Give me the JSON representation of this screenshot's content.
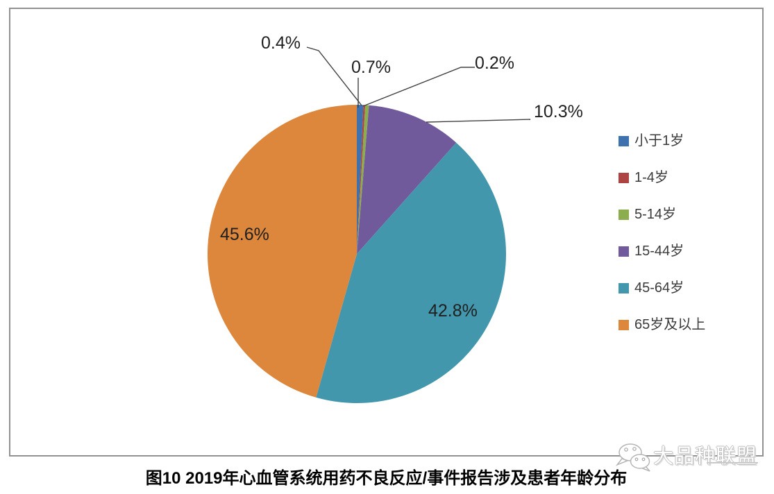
{
  "page": {
    "caption": "图10 2019年心血管系统用药不良反应/事件报告涉及患者年龄分布",
    "watermark": {
      "text": "大品种联盟",
      "logo_icon": "wechat-icon"
    }
  },
  "chart_data": {
    "type": "pie",
    "title": "图10 2019年心血管系统用药不良反应/事件报告涉及患者年龄分布",
    "legend_position": "right",
    "start_angle_deg": -90,
    "direction": "clockwise",
    "units": "%",
    "series": [
      {
        "name": "小于1岁",
        "value": 0.7,
        "label": "0.7%",
        "color": "#3D72AE"
      },
      {
        "name": "1-4岁",
        "value": 0.2,
        "label": "0.2%",
        "color": "#AE4442"
      },
      {
        "name": "5-14岁",
        "value": 0.4,
        "label": "0.4%",
        "color": "#8CAD4E"
      },
      {
        "name": "15-44岁",
        "value": 10.3,
        "label": "10.3%",
        "color": "#715A9C"
      },
      {
        "name": "45-64岁",
        "value": 42.8,
        "label": "42.8%",
        "color": "#4397AD"
      },
      {
        "name": "65岁及以上",
        "value": 45.6,
        "label": "45.6%",
        "color": "#DC873C"
      }
    ],
    "geometry": {
      "cx": 514,
      "cy": 366,
      "r": 215
    }
  }
}
